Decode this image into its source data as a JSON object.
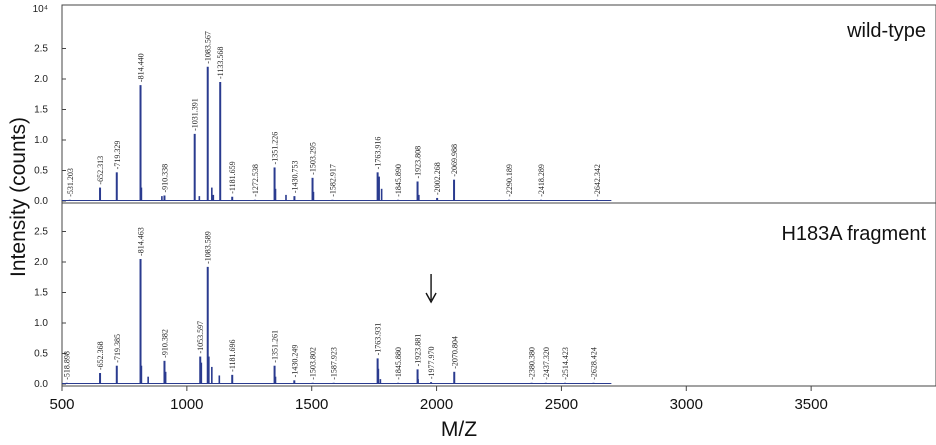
{
  "chart_data": [
    {
      "type": "bar",
      "panel_label": "wild-type",
      "xlabel": "M/Z",
      "ylabel": "Intensity (counts)",
      "xlim": [
        500,
        4000
      ],
      "ylim": [
        0,
        3.0
      ],
      "y_multiplier_label": "10⁴",
      "y_ticks": [
        "0.0",
        "0.5",
        "1.0",
        "1.5",
        "2.0",
        "2.5"
      ],
      "peaks": [
        {
          "x": 531.203,
          "label": "531.203",
          "y": 0.02
        },
        {
          "x": 652.313,
          "label": "652.313",
          "y": 0.22
        },
        {
          "x": 719.329,
          "label": "719.329",
          "y": 0.47
        },
        {
          "x": 814.44,
          "label": "814.440",
          "y": 1.9
        },
        {
          "x": 910.338,
          "label": "910.338",
          "y": 0.09
        },
        {
          "x": 1031.391,
          "label": "1031.391",
          "y": 1.1
        },
        {
          "x": 1083.567,
          "label": "1083.567",
          "y": 2.2
        },
        {
          "x": 1133.568,
          "label": "1133.568",
          "y": 1.95
        },
        {
          "x": 1181.659,
          "label": "1181.659",
          "y": 0.07
        },
        {
          "x": 1272.538,
          "label": "1272.538",
          "y": 0.02
        },
        {
          "x": 1351.226,
          "label": "1351.226",
          "y": 0.55
        },
        {
          "x": 1430.753,
          "label": "1430.753",
          "y": 0.08
        },
        {
          "x": 1503.295,
          "label": "1503.295",
          "y": 0.38
        },
        {
          "x": 1582.917,
          "label": "1582.917",
          "y": 0.02
        },
        {
          "x": 1763.916,
          "label": "1763.916",
          "y": 0.47
        },
        {
          "x": 1845.89,
          "label": "1845.890",
          "y": 0.02
        },
        {
          "x": 1923.808,
          "label": "1923.808",
          "y": 0.32
        },
        {
          "x": 2002.268,
          "label": "2002.268",
          "y": 0.05
        },
        {
          "x": 2069.988,
          "label": "2069.988",
          "y": 0.35
        },
        {
          "x": 2290.189,
          "label": "2290.189",
          "y": 0.02
        },
        {
          "x": 2418.289,
          "label": "2418.289",
          "y": 0.02
        },
        {
          "x": 2642.342,
          "label": "2642.342",
          "y": 0.02
        }
      ],
      "minor_peaks": [
        {
          "x": 818,
          "y": 0.22
        },
        {
          "x": 900,
          "y": 0.08
        },
        {
          "x": 1050,
          "y": 0.08
        },
        {
          "x": 1100,
          "y": 0.22
        },
        {
          "x": 1106,
          "y": 0.1
        },
        {
          "x": 1355,
          "y": 0.2
        },
        {
          "x": 1397,
          "y": 0.1
        },
        {
          "x": 1507,
          "y": 0.15
        },
        {
          "x": 1770,
          "y": 0.4
        },
        {
          "x": 1780,
          "y": 0.2
        },
        {
          "x": 1929,
          "y": 0.1
        }
      ]
    },
    {
      "type": "bar",
      "panel_label": "H183A fragment",
      "xlabel": "M/Z",
      "ylabel": "Intensity (counts)",
      "xlim": [
        500,
        4000
      ],
      "ylim": [
        0,
        3.0
      ],
      "y_ticks": [
        "0.0",
        "0.5",
        "1.0",
        "1.5",
        "2.0",
        "2.5"
      ],
      "x_ticks": [
        "500",
        "1000",
        "1500",
        "2000",
        "2500",
        "3000",
        "3500"
      ],
      "peaks": [
        {
          "x": 518.898,
          "label": "518.898",
          "y": 0.02
        },
        {
          "x": 652.368,
          "label": "652.368",
          "y": 0.18
        },
        {
          "x": 719.385,
          "label": "719.385",
          "y": 0.3
        },
        {
          "x": 814.463,
          "label": "814.463",
          "y": 2.05
        },
        {
          "x": 910.382,
          "label": "910.382",
          "y": 0.38
        },
        {
          "x": 1053.597,
          "label": "1053.597",
          "y": 0.45
        },
        {
          "x": 1083.589,
          "label": "1083.589",
          "y": 1.92
        },
        {
          "x": 1181.696,
          "label": "1181.696",
          "y": 0.15
        },
        {
          "x": 1351.261,
          "label": "1351.261",
          "y": 0.3
        },
        {
          "x": 1430.249,
          "label": "1430.249",
          "y": 0.06
        },
        {
          "x": 1503.802,
          "label": "1503.802",
          "y": 0.02
        },
        {
          "x": 1587.923,
          "label": "1587.923",
          "y": 0.02
        },
        {
          "x": 1763.931,
          "label": "1763.931",
          "y": 0.42
        },
        {
          "x": 1845.88,
          "label": "1845.880",
          "y": 0.02
        },
        {
          "x": 1923.881,
          "label": "1923.881",
          "y": 0.24
        },
        {
          "x": 1977.97,
          "label": "1977.970",
          "y": 0.03
        },
        {
          "x": 2070.804,
          "label": "2070.804",
          "y": 0.2
        },
        {
          "x": 2380.38,
          "label": "2380.380",
          "y": 0.02
        },
        {
          "x": 2437.32,
          "label": "2437.320",
          "y": 0.02
        },
        {
          "x": 2514.423,
          "label": "2514.423",
          "y": 0.02
        },
        {
          "x": 2628.424,
          "label": "2628.424",
          "y": 0.02
        }
      ],
      "minor_peaks": [
        {
          "x": 818,
          "y": 0.3
        },
        {
          "x": 845,
          "y": 0.12
        },
        {
          "x": 915,
          "y": 0.2
        },
        {
          "x": 1058,
          "y": 0.35
        },
        {
          "x": 1088,
          "y": 0.45
        },
        {
          "x": 1100,
          "y": 0.28
        },
        {
          "x": 1130,
          "y": 0.14
        },
        {
          "x": 1355,
          "y": 0.12
        },
        {
          "x": 1767,
          "y": 0.25
        },
        {
          "x": 1775,
          "y": 0.08
        },
        {
          "x": 1926,
          "y": 0.08
        }
      ],
      "arrow_at_x": 1977.97
    }
  ]
}
